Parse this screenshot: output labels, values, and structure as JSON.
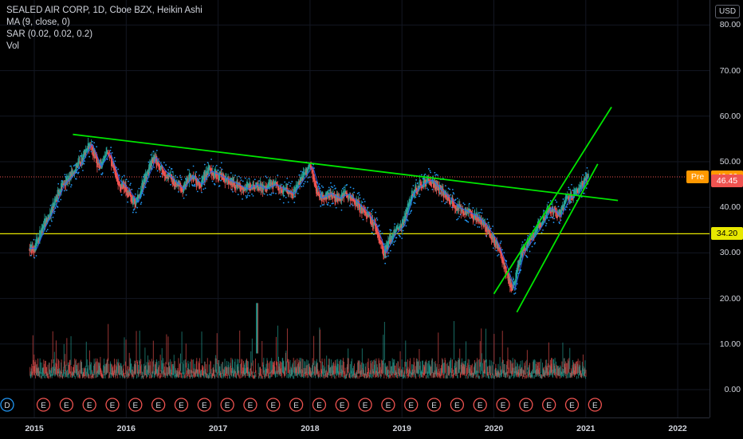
{
  "legend": {
    "title": "SEALED AIR CORP, 1D, Cboe BZX, Heikin Ashi",
    "ma": "MA (9, close, 0)",
    "sar": "SAR (0.02, 0.02, 0.2)",
    "vol": "Vol"
  },
  "currency_button": "USD",
  "price_axis": {
    "ticks": [
      "80.00",
      "70.00",
      "60.00",
      "50.00",
      "40.00",
      "30.00",
      "20.00",
      "10.00",
      "0.00"
    ],
    "badges": {
      "last": "46.67",
      "pre_label": "Pre",
      "pre": "46.66",
      "low": "46.45",
      "hline": "34.20"
    }
  },
  "time_axis": {
    "ticks": [
      "2015",
      "2016",
      "2017",
      "2018",
      "2019",
      "2020",
      "2021",
      "2022"
    ]
  },
  "colors": {
    "up": "#26a69a",
    "down": "#ef5350",
    "ma": "#2962ff",
    "sar": "#2196f3",
    "trendline": "#00e600",
    "hline": "#e8e800",
    "last_price_line": "#ef5350",
    "earnings_marker": "#ef5350",
    "pre_badge": "#ff9800"
  },
  "earnings_markers": {
    "label": "E",
    "dividend_label": "D"
  },
  "chart_data": {
    "type": "line",
    "title": "SEALED AIR CORP, 1D, Cboe BZX, Heikin Ashi",
    "y_range": [
      -5,
      84
    ],
    "x_range": [
      2014.95,
      2022.15
    ],
    "price_series": {
      "name": "SEE",
      "points": [
        [
          2015.0,
          31
        ],
        [
          2015.1,
          36
        ],
        [
          2015.2,
          40
        ],
        [
          2015.3,
          45
        ],
        [
          2015.4,
          47
        ],
        [
          2015.5,
          50
        ],
        [
          2015.6,
          54
        ],
        [
          2015.7,
          49
        ],
        [
          2015.8,
          52
        ],
        [
          2015.9,
          46
        ],
        [
          2016.0,
          44
        ],
        [
          2016.1,
          41
        ],
        [
          2016.2,
          46
        ],
        [
          2016.3,
          51
        ],
        [
          2016.4,
          48
        ],
        [
          2016.5,
          46
        ],
        [
          2016.6,
          44
        ],
        [
          2016.7,
          47
        ],
        [
          2016.8,
          45
        ],
        [
          2016.9,
          48
        ],
        [
          2017.0,
          47
        ],
        [
          2017.1,
          46
        ],
        [
          2017.2,
          45
        ],
        [
          2017.3,
          44
        ],
        [
          2017.4,
          45
        ],
        [
          2017.5,
          44
        ],
        [
          2017.6,
          45
        ],
        [
          2017.7,
          44
        ],
        [
          2017.8,
          43
        ],
        [
          2017.9,
          46
        ],
        [
          2018.0,
          49
        ],
        [
          2018.1,
          42
        ],
        [
          2018.2,
          43
        ],
        [
          2018.3,
          42
        ],
        [
          2018.4,
          43
        ],
        [
          2018.5,
          41
        ],
        [
          2018.6,
          39
        ],
        [
          2018.7,
          36
        ],
        [
          2018.8,
          30
        ],
        [
          2018.9,
          34
        ],
        [
          2019.0,
          36
        ],
        [
          2019.1,
          43
        ],
        [
          2019.2,
          45
        ],
        [
          2019.3,
          46
        ],
        [
          2019.4,
          44
        ],
        [
          2019.5,
          42
        ],
        [
          2019.6,
          40
        ],
        [
          2019.7,
          39
        ],
        [
          2019.8,
          38
        ],
        [
          2019.9,
          36
        ],
        [
          2020.0,
          33
        ],
        [
          2020.1,
          28
        ],
        [
          2020.2,
          22
        ],
        [
          2020.25,
          26
        ],
        [
          2020.3,
          30
        ],
        [
          2020.4,
          33
        ],
        [
          2020.5,
          36
        ],
        [
          2020.6,
          40
        ],
        [
          2020.7,
          38
        ],
        [
          2020.8,
          42
        ],
        [
          2020.9,
          43
        ],
        [
          2021.0,
          46.67
        ]
      ]
    },
    "volume_peak": 17,
    "trendlines": [
      {
        "from": [
          2015.42,
          56
        ],
        "to": [
          2021.35,
          41.5
        ]
      },
      {
        "from": [
          2020.0,
          21
        ],
        "to": [
          2021.28,
          62
        ]
      },
      {
        "from": [
          2020.25,
          17
        ],
        "to": [
          2021.13,
          49.5
        ]
      }
    ],
    "horizontal_line": 34.2,
    "last_price": 46.67
  }
}
